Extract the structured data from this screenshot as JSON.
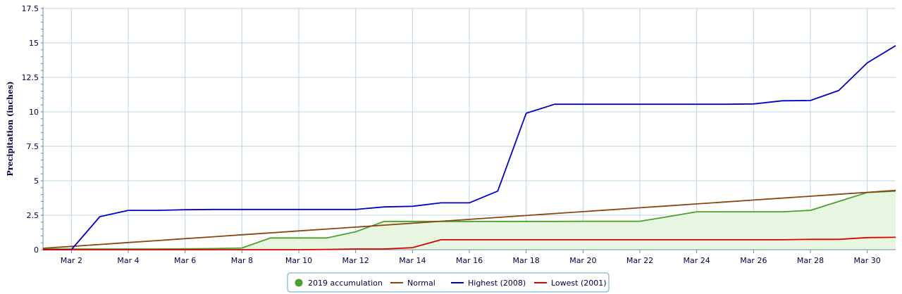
{
  "chart_data": {
    "type": "line",
    "title": "",
    "xlabel": "",
    "ylabel": "Precipitation (inches)",
    "x": [
      "Mar 1",
      "Mar 2",
      "Mar 3",
      "Mar 4",
      "Mar 5",
      "Mar 6",
      "Mar 7",
      "Mar 8",
      "Mar 9",
      "Mar 10",
      "Mar 11",
      "Mar 12",
      "Mar 13",
      "Mar 14",
      "Mar 15",
      "Mar 16",
      "Mar 17",
      "Mar 18",
      "Mar 19",
      "Mar 20",
      "Mar 21",
      "Mar 22",
      "Mar 23",
      "Mar 24",
      "Mar 25",
      "Mar 26",
      "Mar 27",
      "Mar 28",
      "Mar 29",
      "Mar 30",
      "Mar 31"
    ],
    "x_tick_labels": [
      "Mar 2",
      "Mar 4",
      "Mar 6",
      "Mar 8",
      "Mar 10",
      "Mar 12",
      "Mar 14",
      "Mar 16",
      "Mar 18",
      "Mar 20",
      "Mar 22",
      "Mar 24",
      "Mar 26",
      "Mar 28",
      "Mar 30"
    ],
    "ylim": [
      0,
      17.5
    ],
    "y_ticks": [
      0,
      2.5,
      5,
      7.5,
      10,
      12.5,
      15,
      17.5
    ],
    "y_tick_labels": [
      "0",
      "2.5",
      "5",
      "7.5",
      "10",
      "12.5",
      "15",
      "17.5"
    ],
    "grid": true,
    "legend_position": "bottom-center",
    "series": [
      {
        "name": "2019 accumulation",
        "color": "#4aa02c",
        "fill": "#e8f5e0",
        "marker": "dot",
        "values": [
          0.05,
          0.05,
          0.05,
          0.05,
          0.05,
          0.06,
          0.08,
          0.12,
          0.85,
          0.85,
          0.85,
          1.3,
          2.05,
          2.05,
          2.05,
          2.05,
          2.05,
          2.05,
          2.05,
          2.06,
          2.06,
          2.06,
          2.4,
          2.75,
          2.75,
          2.75,
          2.75,
          2.85,
          3.5,
          4.15,
          4.25
        ]
      },
      {
        "name": "Normal",
        "color": "#8b4513",
        "marker": "line",
        "values": [
          0.1,
          0.24,
          0.38,
          0.52,
          0.66,
          0.8,
          0.94,
          1.08,
          1.22,
          1.36,
          1.5,
          1.64,
          1.78,
          1.92,
          2.06,
          2.2,
          2.34,
          2.48,
          2.62,
          2.76,
          2.9,
          3.04,
          3.18,
          3.32,
          3.46,
          3.6,
          3.74,
          3.88,
          4.02,
          4.16,
          4.3
        ]
      },
      {
        "name": "Highest (2008)",
        "color": "#0000cc",
        "marker": "line",
        "values": [
          0.0,
          0.0,
          2.4,
          2.85,
          2.85,
          2.9,
          2.92,
          2.92,
          2.92,
          2.92,
          2.92,
          2.92,
          3.1,
          3.15,
          3.4,
          3.4,
          4.25,
          9.9,
          10.55,
          10.55,
          10.55,
          10.55,
          10.55,
          10.55,
          10.55,
          10.57,
          10.8,
          10.82,
          11.55,
          13.55,
          14.8
        ]
      },
      {
        "name": "Lowest (2001)",
        "color": "#dd0000",
        "marker": "line",
        "values": [
          0.0,
          0.0,
          0.0,
          0.0,
          0.0,
          0.0,
          0.0,
          0.0,
          0.0,
          0.0,
          0.02,
          0.05,
          0.05,
          0.15,
          0.72,
          0.72,
          0.72,
          0.72,
          0.72,
          0.72,
          0.72,
          0.72,
          0.72,
          0.72,
          0.72,
          0.72,
          0.72,
          0.75,
          0.75,
          0.88,
          0.9
        ]
      }
    ]
  }
}
